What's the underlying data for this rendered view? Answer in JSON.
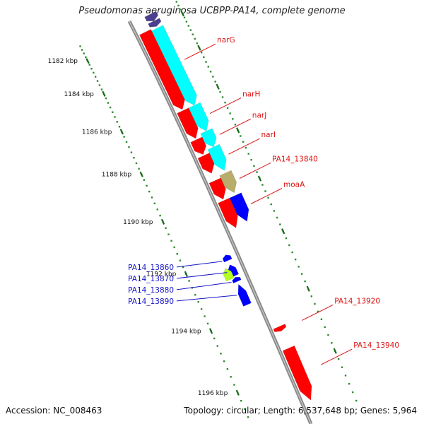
{
  "title": "Pseudomonas aeruginosa UCBPP-PA14, complete genome",
  "footer": {
    "accession": "Accession: NC_008463",
    "summary": "Topology: circular; Length: 6,537,648 bp; Genes: 5,964"
  },
  "colors": {
    "backbone": "#8a8a8a",
    "minor_tick": "#2e8b2e",
    "major_tick": "#1a6b1a",
    "forward_label": "#dd1111",
    "reverse_label": "#1414c8",
    "red_gene": "#ff0000",
    "cyan_gene": "#00ffff",
    "purple_gene": "#4b3f8e",
    "khaki_gene": "#b8ad6a",
    "blue_gene": "#0000ff",
    "green_gene": "#b0ff20"
  },
  "scale": {
    "unit": "kbp",
    "ticks": [
      {
        "pos_kbp": 1182,
        "label": "1182 kbp"
      },
      {
        "pos_kbp": 1184,
        "label": "1184 kbp"
      },
      {
        "pos_kbp": 1186,
        "label": "1186 kbp"
      },
      {
        "pos_kbp": 1188,
        "label": "1188 kbp"
      },
      {
        "pos_kbp": 1190,
        "label": "1190 kbp"
      },
      {
        "pos_kbp": 1192,
        "label": "1192 kbp"
      },
      {
        "pos_kbp": 1194,
        "label": "1194 kbp"
      },
      {
        "pos_kbp": 1196,
        "label": "1196 kbp"
      }
    ]
  },
  "genes": [
    {
      "id": "purple-top-a",
      "start_kbp": 1181.2,
      "end_kbp": 1181.65,
      "lane": "cyan",
      "color": "purple_gene",
      "strand": "+"
    },
    {
      "id": "purple-top-b",
      "start_kbp": 1181.65,
      "end_kbp": 1182.0,
      "lane": "cyan",
      "color": "purple_gene",
      "strand": "+"
    },
    {
      "id": "cyan-narG",
      "start_kbp": 1182.1,
      "end_kbp": 1186.3,
      "lane": "cyan",
      "color": "cyan_gene",
      "strand": "+"
    },
    {
      "id": "cyan-narH",
      "start_kbp": 1186.3,
      "end_kbp": 1187.5,
      "lane": "cyan",
      "color": "cyan_gene",
      "strand": "+"
    },
    {
      "id": "cyan-narJ",
      "start_kbp": 1187.5,
      "end_kbp": 1188.2,
      "lane": "cyan",
      "color": "cyan_gene",
      "strand": "+"
    },
    {
      "id": "cyan-narI",
      "start_kbp": 1188.2,
      "end_kbp": 1189.2,
      "lane": "cyan",
      "color": "cyan_gene",
      "strand": "+"
    },
    {
      "id": "khaki-PA14_13840",
      "start_kbp": 1189.3,
      "end_kbp": 1190.1,
      "lane": "cyan",
      "color": "khaki_gene",
      "strand": "+"
    },
    {
      "id": "blue-moaA",
      "start_kbp": 1190.2,
      "end_kbp": 1191.2,
      "lane": "cyan",
      "color": "blue_gene",
      "strand": "+"
    },
    {
      "id": "red-narG",
      "start_kbp": 1182.0,
      "end_kbp": 1186.25,
      "lane": "red",
      "color": "red_gene",
      "strand": "+"
    },
    {
      "id": "red-narH",
      "start_kbp": 1186.3,
      "end_kbp": 1187.6,
      "lane": "red",
      "color": "red_gene",
      "strand": "+"
    },
    {
      "id": "red-narJ",
      "start_kbp": 1187.65,
      "end_kbp": 1188.3,
      "lane": "red",
      "color": "red_gene",
      "strand": "+"
    },
    {
      "id": "red-narI",
      "start_kbp": 1188.35,
      "end_kbp": 1189.1,
      "lane": "red",
      "color": "red_gene",
      "strand": "+"
    },
    {
      "id": "red-PA14_13840",
      "start_kbp": 1189.4,
      "end_kbp": 1190.15,
      "lane": "red",
      "color": "red_gene",
      "strand": "+"
    },
    {
      "id": "red-moaA",
      "start_kbp": 1190.2,
      "end_kbp": 1191.25,
      "lane": "red",
      "color": "red_gene",
      "strand": "+"
    },
    {
      "id": "red-PA14_13920",
      "start_kbp": 1194.7,
      "end_kbp": 1194.85,
      "lane": "red",
      "color": "red_gene",
      "strand": "+"
    },
    {
      "id": "red-PA14_13940",
      "start_kbp": 1195.4,
      "end_kbp": 1197.0,
      "lane": "red",
      "color": "red_gene",
      "strand": "+"
    },
    {
      "id": "blue-PA14_13860",
      "start_kbp": 1191.95,
      "end_kbp": 1192.15,
      "lane": "inner",
      "color": "blue_gene",
      "strand": "-"
    },
    {
      "id": "blue-PA14_13870",
      "start_kbp": 1192.3,
      "end_kbp": 1192.7,
      "lane": "inner",
      "color": "blue_gene",
      "strand": "-"
    },
    {
      "id": "blue-PA14_13880",
      "start_kbp": 1192.75,
      "end_kbp": 1192.9,
      "lane": "inner",
      "color": "blue_gene",
      "strand": "-"
    },
    {
      "id": "blue-PA14_13890",
      "start_kbp": 1193.0,
      "end_kbp": 1193.7,
      "lane": "inner",
      "color": "blue_gene",
      "strand": "-"
    },
    {
      "id": "green-PA14_13860",
      "start_kbp": 1192.35,
      "end_kbp": 1192.75,
      "lane": "inner2",
      "color": "green_gene",
      "strand": "-"
    }
  ],
  "gene_labels": [
    {
      "text": "narG",
      "at_kbp": 1184.2,
      "side": "right",
      "color": "forward_label"
    },
    {
      "text": "narH",
      "at_kbp": 1186.9,
      "side": "right",
      "color": "forward_label"
    },
    {
      "text": "narJ",
      "at_kbp": 1187.85,
      "side": "right",
      "color": "forward_label"
    },
    {
      "text": "narI",
      "at_kbp": 1188.7,
      "side": "right",
      "color": "forward_label"
    },
    {
      "text": "PA14_13840",
      "at_kbp": 1189.7,
      "side": "right",
      "color": "forward_label"
    },
    {
      "text": "moaA",
      "at_kbp": 1190.7,
      "side": "right",
      "color": "forward_label"
    },
    {
      "text": "PA14_13920",
      "at_kbp": 1194.8,
      "side": "right",
      "color": "forward_label"
    },
    {
      "text": "PA14_13940",
      "at_kbp": 1196.2,
      "side": "right",
      "color": "forward_label"
    },
    {
      "text": "PA14_13860",
      "at_kbp": 1192.1,
      "side": "left",
      "color": "reverse_label"
    },
    {
      "text": "PA14_13870",
      "at_kbp": 1192.5,
      "side": "left",
      "color": "reverse_label"
    },
    {
      "text": "PA14_13880",
      "at_kbp": 1192.85,
      "side": "left",
      "color": "reverse_label"
    },
    {
      "text": "PA14_13890",
      "at_kbp": 1193.3,
      "side": "left",
      "color": "reverse_label"
    }
  ]
}
